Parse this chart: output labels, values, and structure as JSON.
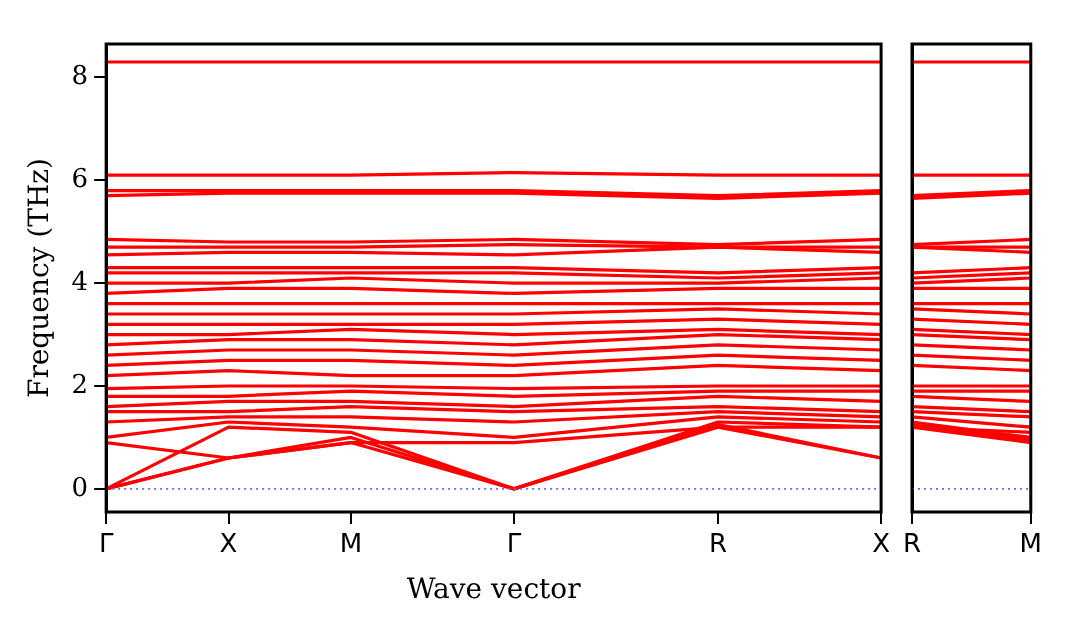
{
  "chart_data": [
    {
      "type": "line",
      "xlabel": "Wave vector",
      "ylabel": "Frequency (THz)",
      "categories": [
        "Γ",
        null,
        null,
        "X",
        null,
        null,
        "M",
        null,
        null,
        null,
        "Γ",
        null,
        null,
        null,
        null,
        "R",
        null,
        null,
        null,
        "X"
      ],
      "ylim": [
        -0.45,
        8.65
      ],
      "yticks": [
        0,
        2,
        4,
        6,
        8
      ],
      "grid": false,
      "marker": "none",
      "line_style": "solid",
      "ref_lines": [
        {
          "axis": "y",
          "value": 0,
          "color": "#6666ff",
          "line_style": "dotted"
        }
      ],
      "series": [
        {
          "color": "#ff0000",
          "values": [
            0,
            null,
            null,
            0.6,
            null,
            null,
            0.9,
            null,
            null,
            null,
            0,
            null,
            null,
            null,
            null,
            1.2,
            null,
            null,
            null,
            0.6
          ]
        },
        {
          "color": "#ff0000",
          "values": [
            0,
            null,
            null,
            0.6,
            null,
            null,
            1.0,
            null,
            null,
            null,
            0,
            null,
            null,
            null,
            null,
            1.25,
            null,
            null,
            null,
            0.6
          ]
        },
        {
          "color": "#ff0000",
          "values": [
            0,
            null,
            null,
            1.2,
            null,
            null,
            1.1,
            null,
            null,
            null,
            0,
            null,
            null,
            null,
            null,
            1.3,
            null,
            null,
            null,
            1.2
          ]
        },
        {
          "color": "#ff0000",
          "values": [
            0.9,
            null,
            null,
            0.6,
            null,
            null,
            0.9,
            null,
            null,
            null,
            0.9,
            null,
            null,
            null,
            null,
            1.2,
            null,
            null,
            null,
            1.2
          ]
        },
        {
          "color": "#ff0000",
          "values": [
            1.0,
            null,
            null,
            1.3,
            null,
            null,
            1.2,
            null,
            null,
            null,
            1.0,
            null,
            null,
            null,
            null,
            1.4,
            null,
            null,
            null,
            1.3
          ]
        },
        {
          "color": "#ff0000",
          "values": [
            1.3,
            null,
            null,
            1.4,
            null,
            null,
            1.4,
            null,
            null,
            null,
            1.3,
            null,
            null,
            null,
            null,
            1.5,
            null,
            null,
            null,
            1.4
          ]
        },
        {
          "color": "#ff0000",
          "values": [
            1.5,
            null,
            null,
            1.5,
            null,
            null,
            1.6,
            null,
            null,
            null,
            1.5,
            null,
            null,
            null,
            null,
            1.6,
            null,
            null,
            null,
            1.5
          ]
        },
        {
          "color": "#ff0000",
          "values": [
            1.6,
            null,
            null,
            1.7,
            null,
            null,
            1.7,
            null,
            null,
            null,
            1.6,
            null,
            null,
            null,
            null,
            1.8,
            null,
            null,
            null,
            1.7
          ]
        },
        {
          "color": "#ff0000",
          "values": [
            1.8,
            null,
            null,
            1.8,
            null,
            null,
            1.9,
            null,
            null,
            null,
            1.8,
            null,
            null,
            null,
            null,
            1.9,
            null,
            null,
            null,
            1.9
          ]
        },
        {
          "color": "#ff0000",
          "values": [
            1.95,
            null,
            null,
            2.0,
            null,
            null,
            2.0,
            null,
            null,
            null,
            1.95,
            null,
            null,
            null,
            null,
            2.0,
            null,
            null,
            null,
            2.0
          ]
        },
        {
          "color": "#ff0000",
          "values": [
            2.2,
            null,
            null,
            2.3,
            null,
            null,
            2.2,
            null,
            null,
            null,
            2.2,
            null,
            null,
            null,
            null,
            2.4,
            null,
            null,
            null,
            2.3
          ]
        },
        {
          "color": "#ff0000",
          "values": [
            2.4,
            null,
            null,
            2.5,
            null,
            null,
            2.5,
            null,
            null,
            null,
            2.4,
            null,
            null,
            null,
            null,
            2.6,
            null,
            null,
            null,
            2.5
          ]
        },
        {
          "color": "#ff0000",
          "values": [
            2.6,
            null,
            null,
            2.7,
            null,
            null,
            2.7,
            null,
            null,
            null,
            2.6,
            null,
            null,
            null,
            null,
            2.8,
            null,
            null,
            null,
            2.7
          ]
        },
        {
          "color": "#ff0000",
          "values": [
            2.8,
            null,
            null,
            2.9,
            null,
            null,
            2.9,
            null,
            null,
            null,
            2.8,
            null,
            null,
            null,
            null,
            3.0,
            null,
            null,
            null,
            2.9
          ]
        },
        {
          "color": "#ff0000",
          "values": [
            3.0,
            null,
            null,
            3.0,
            null,
            null,
            3.1,
            null,
            null,
            null,
            3.0,
            null,
            null,
            null,
            null,
            3.1,
            null,
            null,
            null,
            3.0
          ]
        },
        {
          "color": "#ff0000",
          "values": [
            3.2,
            null,
            null,
            3.2,
            null,
            null,
            3.2,
            null,
            null,
            null,
            3.2,
            null,
            null,
            null,
            null,
            3.3,
            null,
            null,
            null,
            3.2
          ]
        },
        {
          "color": "#ff0000",
          "values": [
            3.4,
            null,
            null,
            3.4,
            null,
            null,
            3.4,
            null,
            null,
            null,
            3.4,
            null,
            null,
            null,
            null,
            3.5,
            null,
            null,
            null,
            3.4
          ]
        },
        {
          "color": "#ff0000",
          "values": [
            3.6,
            null,
            null,
            3.6,
            null,
            null,
            3.6,
            null,
            null,
            null,
            3.6,
            null,
            null,
            null,
            null,
            3.6,
            null,
            null,
            null,
            3.6
          ]
        },
        {
          "color": "#ff0000",
          "values": [
            3.8,
            null,
            null,
            3.9,
            null,
            null,
            3.9,
            null,
            null,
            null,
            3.8,
            null,
            null,
            null,
            null,
            3.9,
            null,
            null,
            null,
            3.9
          ]
        },
        {
          "color": "#ff0000",
          "values": [
            4.0,
            null,
            null,
            4.0,
            null,
            null,
            4.1,
            null,
            null,
            null,
            4.0,
            null,
            null,
            null,
            null,
            4.0,
            null,
            null,
            null,
            4.1
          ]
        },
        {
          "color": "#ff0000",
          "values": [
            4.2,
            null,
            null,
            4.2,
            null,
            null,
            4.2,
            null,
            null,
            null,
            4.2,
            null,
            null,
            null,
            null,
            4.1,
            null,
            null,
            null,
            4.2
          ]
        },
        {
          "color": "#ff0000",
          "values": [
            4.3,
            null,
            null,
            4.3,
            null,
            null,
            4.3,
            null,
            null,
            null,
            4.3,
            null,
            null,
            null,
            null,
            4.2,
            null,
            null,
            null,
            4.3
          ]
        },
        {
          "color": "#ff0000",
          "values": [
            4.55,
            null,
            null,
            4.6,
            null,
            null,
            4.6,
            null,
            null,
            null,
            4.55,
            null,
            null,
            null,
            null,
            4.7,
            null,
            null,
            null,
            4.6
          ]
        },
        {
          "color": "#ff0000",
          "values": [
            4.7,
            null,
            null,
            4.7,
            null,
            null,
            4.7,
            null,
            null,
            null,
            4.75,
            null,
            null,
            null,
            null,
            4.7,
            null,
            null,
            null,
            4.7
          ]
        },
        {
          "color": "#ff0000",
          "values": [
            4.85,
            null,
            null,
            4.8,
            null,
            null,
            4.8,
            null,
            null,
            null,
            4.85,
            null,
            null,
            null,
            null,
            4.75,
            null,
            null,
            null,
            4.85
          ]
        },
        {
          "color": "#ff0000",
          "values": [
            5.7,
            null,
            null,
            5.75,
            null,
            null,
            5.75,
            null,
            null,
            null,
            5.75,
            null,
            null,
            null,
            null,
            5.65,
            null,
            null,
            null,
            5.75
          ]
        },
        {
          "color": "#ff0000",
          "values": [
            5.8,
            null,
            null,
            5.8,
            null,
            null,
            5.8,
            null,
            null,
            null,
            5.8,
            null,
            null,
            null,
            null,
            5.7,
            null,
            null,
            null,
            5.8
          ]
        },
        {
          "color": "#ff0000",
          "values": [
            6.1,
            null,
            null,
            6.1,
            null,
            null,
            6.1,
            null,
            null,
            null,
            6.15,
            null,
            null,
            null,
            null,
            6.1,
            null,
            null,
            null,
            6.1
          ]
        },
        {
          "color": "#ff0000",
          "values": [
            8.3,
            null,
            null,
            8.3,
            null,
            null,
            8.3,
            null,
            null,
            null,
            8.3,
            null,
            null,
            null,
            null,
            8.3,
            null,
            null,
            null,
            8.3
          ]
        }
      ]
    },
    {
      "type": "line",
      "categories": [
        "R",
        "M"
      ],
      "ylim": [
        -0.45,
        8.65
      ],
      "yticks": [
        0,
        2,
        4,
        6,
        8
      ],
      "tick_labels": "x",
      "grid": "x",
      "marker": "none",
      "line_style": "solid",
      "ref_lines": [
        {
          "axis": "y",
          "value": 0,
          "color": "#6666ff",
          "line_style": "dotted"
        }
      ],
      "series": [
        {
          "color": "#ff0000",
          "values": [
            1.2,
            0.9
          ]
        },
        {
          "color": "#ff0000",
          "values": [
            1.25,
            0.95
          ]
        },
        {
          "color": "#ff0000",
          "values": [
            1.3,
            1.0
          ]
        },
        {
          "color": "#ff0000",
          "values": [
            1.2,
            1.1
          ]
        },
        {
          "color": "#ff0000",
          "values": [
            1.4,
            1.2
          ]
        },
        {
          "color": "#ff0000",
          "values": [
            1.5,
            1.4
          ]
        },
        {
          "color": "#ff0000",
          "values": [
            1.6,
            1.5
          ]
        },
        {
          "color": "#ff0000",
          "values": [
            1.8,
            1.7
          ]
        },
        {
          "color": "#ff0000",
          "values": [
            1.9,
            1.9
          ]
        },
        {
          "color": "#ff0000",
          "values": [
            2.0,
            2.0
          ]
        },
        {
          "color": "#ff0000",
          "values": [
            2.4,
            2.3
          ]
        },
        {
          "color": "#ff0000",
          "values": [
            2.6,
            2.5
          ]
        },
        {
          "color": "#ff0000",
          "values": [
            2.8,
            2.7
          ]
        },
        {
          "color": "#ff0000",
          "values": [
            3.0,
            2.9
          ]
        },
        {
          "color": "#ff0000",
          "values": [
            3.1,
            3.0
          ]
        },
        {
          "color": "#ff0000",
          "values": [
            3.3,
            3.2
          ]
        },
        {
          "color": "#ff0000",
          "values": [
            3.5,
            3.4
          ]
        },
        {
          "color": "#ff0000",
          "values": [
            3.6,
            3.6
          ]
        },
        {
          "color": "#ff0000",
          "values": [
            3.9,
            3.9
          ]
        },
        {
          "color": "#ff0000",
          "values": [
            4.0,
            4.1
          ]
        },
        {
          "color": "#ff0000",
          "values": [
            4.1,
            4.2
          ]
        },
        {
          "color": "#ff0000",
          "values": [
            4.2,
            4.3
          ]
        },
        {
          "color": "#ff0000",
          "values": [
            4.7,
            4.6
          ]
        },
        {
          "color": "#ff0000",
          "values": [
            4.7,
            4.7
          ]
        },
        {
          "color": "#ff0000",
          "values": [
            4.75,
            4.85
          ]
        },
        {
          "color": "#ff0000",
          "values": [
            5.65,
            5.75
          ]
        },
        {
          "color": "#ff0000",
          "values": [
            5.7,
            5.8
          ]
        },
        {
          "color": "#ff0000",
          "values": [
            6.1,
            6.1
          ]
        },
        {
          "color": "#ff0000",
          "values": [
            8.3,
            8.3
          ]
        }
      ]
    }
  ]
}
